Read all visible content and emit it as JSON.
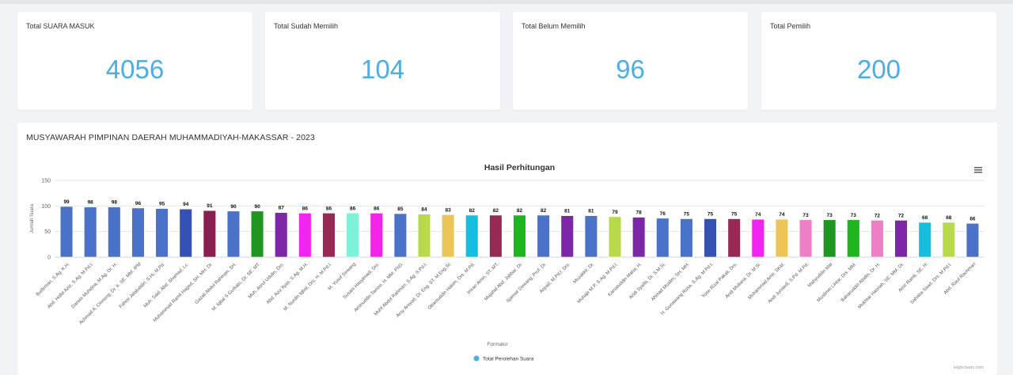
{
  "cards": [
    {
      "label": "Total SUARA MASUK",
      "value": "4056"
    },
    {
      "label": "Total Sudah Memilih",
      "value": "104"
    },
    {
      "label": "Total Belum Memilih",
      "value": "96"
    },
    {
      "label": "Total Pemilih",
      "value": "200"
    }
  ],
  "panel": {
    "title": "MUSYAWARAH PIMPINAN DAERAH MUHAMMADIYAH-MAKASSAR - 2023"
  },
  "menu_icon": "hamburger-menu-icon",
  "credit": "Highcharts.com",
  "chart_data": {
    "type": "bar",
    "title": "Hasil Perhitungan",
    "xlabel": "Formatur",
    "ylabel": "Jumlah Suara",
    "ylim": [
      0,
      150
    ],
    "yticks": [
      0,
      50,
      100,
      150
    ],
    "legend": "bottom-center",
    "grid": true,
    "series": [
      {
        "name": "Total Perolehan Suara",
        "color": "#4aaee3"
      }
    ],
    "categories": [
      "Budirman, S.Ag. K.H.",
      "Abd. Hafid Aziz, S.Ag. M.Pd.I.",
      "Darwis Muhdina, M.Ag. Dr. H.",
      "Achmad A. Cinnong, Dr. Ir. SE. MM. IPM",
      "Fahmi Jalaluddin, S.Hi. M.Pd.",
      "Muh. Said, Abd. Shamad, Lc.",
      "Muhammad Ramli Haged, SH. MH. Dr.",
      "Gazali Abdul Rahman, SH.",
      "M. Iqbal S Gurkato, Dr. SE. MT.",
      "Muh. Asrul Udulin, Drs.",
      "Abd. Aziz Ilyas, S.Ag. M.H.",
      "M. Nurdin Iqbal, Drs. H. M.Pd.I.",
      "M. Yusuf Sewang",
      "Susani Hasyimadi, Drs.",
      "Aminuddin Tamse, H. MM. PhD.",
      "Muhf Abdul Rahman, S.Ag. S.Pd.I.",
      "Arsy Arsyad, Dr. Eng. ST. M.Eng.Sc",
      "Ottamuddin Hakim, Drs. M.Pd.",
      "Imran Amin, ST. MT.",
      "Mujahid Abd. Jabbar, Dr.",
      "Sjamsir Dewang, Prof. Dr.",
      "Aspad, M.Pd.I. Drs.",
      "Muzakkir, Dr.",
      "Muhajir M.P, S.Ag. M.Pd.I.",
      "Kamaluddin Maha, H.",
      "Andi Syaifa, Dr. S.M.Si.",
      "Ahmad Muslim, SH. MH.",
      "H. Gunawang Rosa, S.Ag. M.Pd.I.",
      "Yose Rizal Pakali, Drs.",
      "Andi Muliana, Dr. M.Si.",
      "Muhammad Amir, SKM.",
      "Andi Junaedi, S.Pd. M.Pd.",
      "Mahyuddin Idar",
      "Muslimin Lintar, Drs. MM.",
      "Baharuddin Abidin, Dr. H.",
      "Mukhtar Hasnah, SE. MM. Dr.",
      "Amir Ramli, SE. H.",
      "Sahaba Saad, Drs. M.Pd.I.",
      "Abd. Rauf Rachman"
    ],
    "values": [
      99,
      98,
      98,
      96,
      95,
      94,
      91,
      90,
      90,
      87,
      86,
      86,
      86,
      86,
      85,
      84,
      83,
      82,
      82,
      82,
      82,
      81,
      81,
      79,
      78,
      76,
      75,
      75,
      75,
      74,
      74,
      73,
      73,
      73,
      72,
      72,
      68,
      68,
      66
    ],
    "colors": [
      "#4a72c8",
      "#4a72c8",
      "#4a72c8",
      "#4a72c8",
      "#4a72c8",
      "#3651b5",
      "#8a1f4f",
      "#4a72c8",
      "#1f961f",
      "#7b27a8",
      "#f224ef",
      "#962a55",
      "#7ef2d8",
      "#f224e8",
      "#4a72c8",
      "#b8d94a",
      "#ecc457",
      "#15bede",
      "#962a55",
      "#1fb51f",
      "#4a72c8",
      "#7b27a8",
      "#4a72c8",
      "#b8d94a",
      "#7b27a8",
      "#4a72c8",
      "#4a72c8",
      "#3651b5",
      "#962a55",
      "#f224ef",
      "#ecc457",
      "#f07ec6",
      "#1f961f",
      "#1fb51f",
      "#f07ec6",
      "#7b27a8",
      "#15bede",
      "#b8d94a",
      "#4a72c8"
    ]
  }
}
